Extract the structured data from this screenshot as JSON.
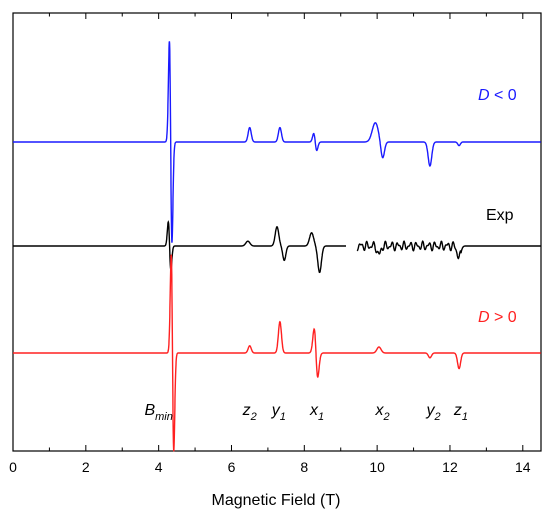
{
  "chart_data": {
    "type": "line",
    "xlabel": "Magnetic Field (T)",
    "ylabel": "",
    "xlim": [
      0,
      14.5
    ],
    "xticks": [
      "0",
      "2",
      "4",
      "6",
      "8",
      "10",
      "12",
      "14"
    ],
    "y_tick_labels": false,
    "grid": false,
    "legend": "none",
    "series": [
      {
        "name": "D < 0",
        "label_italic_part": "D",
        "label_rest": " < 0",
        "color": "#1a1aff",
        "baseline_offset": 3,
        "features": [
          {
            "x": 4.33,
            "amp": 8.4,
            "w": 0.05,
            "kind": "deriv"
          },
          {
            "x": 6.5,
            "amp": 1.2,
            "w": 0.06,
            "kind": "peak"
          },
          {
            "x": 7.33,
            "amp": 1.2,
            "w": 0.06,
            "kind": "peak"
          },
          {
            "x": 8.3,
            "amp": 0.7,
            "w": 0.06,
            "kind": "deriv"
          },
          {
            "x": 9.95,
            "amp": 1.6,
            "w": 0.12,
            "kind": "peak"
          },
          {
            "x": 10.15,
            "amp": 1.4,
            "w": 0.07,
            "kind": "dip"
          },
          {
            "x": 11.45,
            "amp": 2.0,
            "w": 0.07,
            "kind": "dip"
          },
          {
            "x": 12.25,
            "amp": 0.3,
            "w": 0.05,
            "kind": "dip"
          }
        ]
      },
      {
        "name": "Exp",
        "color": "#000000",
        "baseline_offset": 2,
        "features": [
          {
            "x": 4.3,
            "amp": 2.0,
            "w": 0.05,
            "kind": "deriv"
          },
          {
            "x": 6.45,
            "amp": 0.4,
            "w": 0.08,
            "kind": "peak"
          },
          {
            "x": 7.25,
            "amp": 1.6,
            "w": 0.07,
            "kind": "peak"
          },
          {
            "x": 7.45,
            "amp": 1.2,
            "w": 0.06,
            "kind": "dip"
          },
          {
            "x": 8.2,
            "amp": 1.1,
            "w": 0.08,
            "kind": "peak"
          },
          {
            "x": 8.42,
            "amp": 2.2,
            "w": 0.07,
            "kind": "dip"
          },
          {
            "x": 10.05,
            "amp": 0.8,
            "w": 0.06,
            "kind": "dip"
          },
          {
            "x": 12.25,
            "amp": 1.0,
            "w": 0.07,
            "kind": "dip"
          }
        ]
      },
      {
        "name": "D > 0",
        "label_italic_part": "D",
        "label_rest": " > 0",
        "color": "#ff2020",
        "baseline_offset": 1,
        "features": [
          {
            "x": 4.38,
            "amp": 8.2,
            "w": 0.05,
            "kind": "deriv"
          },
          {
            "x": 6.5,
            "amp": 0.6,
            "w": 0.06,
            "kind": "peak"
          },
          {
            "x": 7.33,
            "amp": 2.6,
            "w": 0.06,
            "kind": "peak"
          },
          {
            "x": 8.32,
            "amp": 2.0,
            "w": 0.07,
            "kind": "deriv"
          },
          {
            "x": 10.05,
            "amp": 0.5,
            "w": 0.08,
            "kind": "peak"
          },
          {
            "x": 11.45,
            "amp": 0.4,
            "w": 0.06,
            "kind": "dip"
          },
          {
            "x": 12.25,
            "amp": 1.3,
            "w": 0.06,
            "kind": "dip"
          }
        ]
      }
    ],
    "annotations": [
      {
        "main": "B",
        "sub": "min",
        "x": 4.0
      },
      {
        "main": "z",
        "sub": "2",
        "x": 6.5
      },
      {
        "main": "y",
        "sub": "1",
        "x": 7.3
      },
      {
        "main": "x",
        "sub": "1",
        "x": 8.35
      },
      {
        "main": "x",
        "sub": "2",
        "x": 10.15
      },
      {
        "main": "y",
        "sub": "2",
        "x": 11.55
      },
      {
        "main": "z",
        "sub": "1",
        "x": 12.3
      }
    ]
  }
}
